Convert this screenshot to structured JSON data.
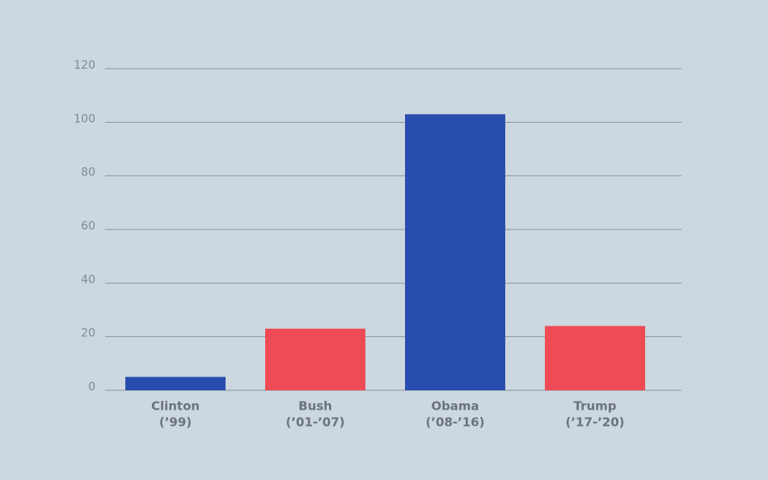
{
  "chart_data": {
    "type": "bar",
    "categories": [
      [
        "Clinton",
        "(’99)"
      ],
      [
        "Bush",
        "(’01-’07)"
      ],
      [
        "Obama",
        "(’08-’16)"
      ],
      [
        "Trump",
        "(’17-’20)"
      ]
    ],
    "values": [
      5,
      23,
      103,
      24
    ],
    "colors": [
      "#2a4db0",
      "#ee4b55",
      "#2a4db0",
      "#ee4b55"
    ],
    "ylim": [
      0,
      120
    ],
    "yticks": [
      0,
      20,
      40,
      60,
      80,
      100,
      120
    ],
    "grid": true
  }
}
